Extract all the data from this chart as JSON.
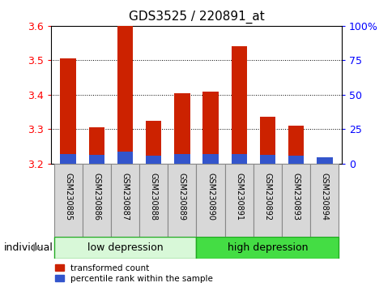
{
  "title": "GDS3525 / 220891_at",
  "samples": [
    "GSM230885",
    "GSM230886",
    "GSM230887",
    "GSM230888",
    "GSM230889",
    "GSM230890",
    "GSM230891",
    "GSM230892",
    "GSM230893",
    "GSM230894"
  ],
  "red_values": [
    3.505,
    3.305,
    3.6,
    3.325,
    3.405,
    3.41,
    3.54,
    3.335,
    3.31,
    3.21
  ],
  "blue_values": [
    0.028,
    0.025,
    0.035,
    0.022,
    0.028,
    0.028,
    0.028,
    0.025,
    0.022,
    0.018
  ],
  "base": 3.2,
  "ylim": [
    3.2,
    3.6
  ],
  "y_ticks": [
    3.2,
    3.3,
    3.4,
    3.5,
    3.6
  ],
  "right_ticks": [
    0,
    25,
    50,
    75,
    100
  ],
  "right_tick_labels": [
    "0",
    "25",
    "50",
    "75",
    "100%"
  ],
  "bar_color_red": "#cc2200",
  "bar_color_blue": "#3355cc",
  "bar_width": 0.55,
  "legend_labels": [
    "transformed count",
    "percentile rank within the sample"
  ],
  "title_fontsize": 11,
  "tick_fontsize": 9,
  "label_fontsize": 9,
  "sample_fontsize": 7,
  "background_color": "#ffffff",
  "low_dep_color": "#d8f8d8",
  "high_dep_color": "#44dd44",
  "group_edge_color": "#22aa22",
  "sample_box_color": "#d8d8d8",
  "sample_box_edge": "#888888"
}
